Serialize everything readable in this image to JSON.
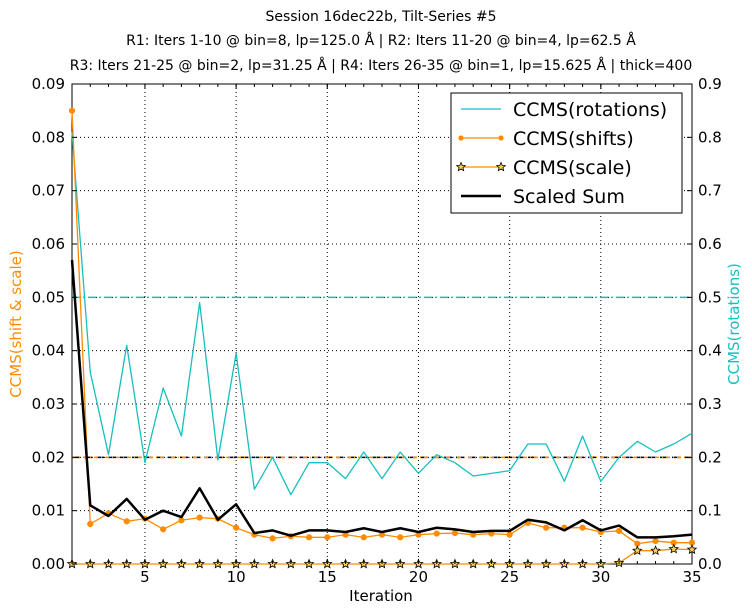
{
  "chart_data": {
    "type": "line",
    "title_lines": [
      "Session 16dec22b, Tilt-Series #5",
      "R1: Iters 1-10 @ bin=8, lp=125.0 Å | R2: Iters 11-20 @ bin=4, lp=62.5 Å",
      "R3: Iters 21-25 @ bin=2, lp=31.25 Å | R4: Iters 26-35 @ bin=1, lp=15.625 Å | thick=400"
    ],
    "xlabel": "Iteration",
    "ylabel_left": "CCMS(shift & scale)",
    "ylabel_right": "CCMS(rotations)",
    "xlim": [
      1,
      35
    ],
    "ylim_left": [
      0,
      0.09
    ],
    "ylim_right": [
      0,
      0.9
    ],
    "x_ticks": [
      5,
      10,
      15,
      20,
      25,
      30,
      35
    ],
    "y_left_ticks": [
      "0.00",
      "0.01",
      "0.02",
      "0.03",
      "0.04",
      "0.05",
      "0.06",
      "0.07",
      "0.08",
      "0.09"
    ],
    "y_right_ticks": [
      "0.0",
      "0.1",
      "0.2",
      "0.3",
      "0.4",
      "0.5",
      "0.6",
      "0.7",
      "0.8",
      "0.9"
    ],
    "grid": true,
    "legend_position": "top-right",
    "x": [
      1,
      2,
      3,
      4,
      5,
      6,
      7,
      8,
      9,
      10,
      11,
      12,
      13,
      14,
      15,
      16,
      17,
      18,
      19,
      20,
      21,
      22,
      23,
      24,
      25,
      26,
      27,
      28,
      29,
      30,
      31,
      32,
      33,
      34,
      35
    ],
    "series": [
      {
        "name": "CCMS(rotations)",
        "axis": "right",
        "color": "#17bfbf",
        "style": "line",
        "values": [
          0.81,
          0.36,
          0.205,
          0.41,
          0.19,
          0.33,
          0.24,
          0.49,
          0.195,
          0.395,
          0.14,
          0.2,
          0.13,
          0.19,
          0.19,
          0.16,
          0.21,
          0.16,
          0.21,
          0.17,
          0.205,
          0.19,
          0.165,
          0.17,
          0.175,
          0.225,
          0.225,
          0.155,
          0.24,
          0.155,
          0.2,
          0.23,
          0.21,
          0.225,
          0.245
        ]
      },
      {
        "name": "CCMS(shifts)",
        "axis": "left",
        "color": "#ff8c00",
        "style": "line-dot",
        "values": [
          0.085,
          0.0075,
          0.0095,
          0.008,
          0.0085,
          0.0065,
          0.0082,
          0.0087,
          0.0085,
          0.0068,
          0.0055,
          0.0048,
          0.0052,
          0.005,
          0.005,
          0.0055,
          0.005,
          0.0055,
          0.005,
          0.0055,
          0.0057,
          0.0058,
          0.0055,
          0.0057,
          0.0055,
          0.0077,
          0.0068,
          0.0068,
          0.0068,
          0.006,
          0.0062,
          0.0038,
          0.0043,
          0.004,
          0.004
        ]
      },
      {
        "name": "CCMS(scale)",
        "axis": "left",
        "color": "#ff8c00",
        "marker_fill": "#ffd24d",
        "style": "line-star",
        "values": [
          0,
          0,
          0,
          0,
          0,
          0,
          0,
          0,
          0,
          0,
          0,
          0,
          0,
          0,
          0,
          0,
          0,
          0,
          0,
          0,
          0,
          0,
          0,
          0,
          0,
          0,
          0,
          0,
          0,
          0,
          0.0002,
          0.0025,
          0.0025,
          0.0028,
          0.0027
        ]
      },
      {
        "name": "Scaled Sum",
        "axis": "left",
        "color": "#000000",
        "style": "line-bold",
        "values": [
          0.057,
          0.011,
          0.009,
          0.0122,
          0.0083,
          0.01,
          0.0088,
          0.0142,
          0.0083,
          0.0112,
          0.0058,
          0.0063,
          0.0053,
          0.0063,
          0.0063,
          0.006,
          0.0067,
          0.006,
          0.0067,
          0.006,
          0.0068,
          0.0065,
          0.006,
          0.0062,
          0.0062,
          0.0083,
          0.0078,
          0.0063,
          0.0082,
          0.0063,
          0.0072,
          0.005,
          0.005,
          0.0052,
          0.0055
        ]
      }
    ],
    "reference_lines": [
      {
        "axis": "left",
        "y": 0.02,
        "color": "#000000",
        "dash": "8,4"
      },
      {
        "axis": "left",
        "y": 0.02,
        "color": "#ff8c00",
        "dash": "4,3,1,3"
      },
      {
        "axis": "right",
        "y": 0.5,
        "color": "#17bfbf",
        "dash": "8,3,2,3"
      }
    ]
  }
}
